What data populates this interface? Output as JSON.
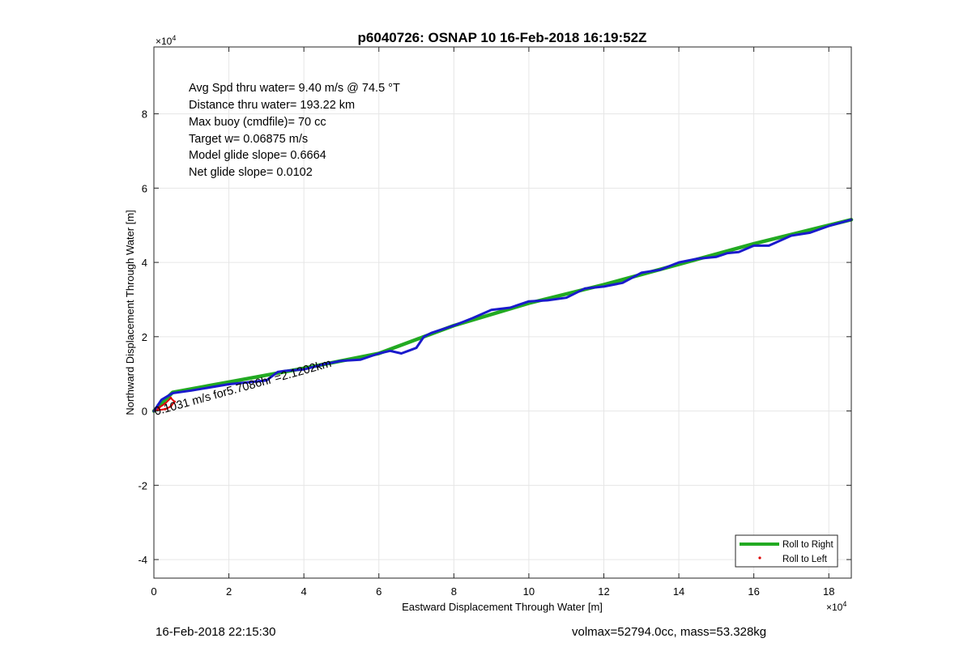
{
  "chart_data": {
    "type": "line",
    "title": "p6040726: OSNAP 10 16-Feb-2018 16:19:52Z",
    "xlabel": "Eastward Displacement Through Water [m]",
    "ylabel": "Northward Displacement Through Water [m]",
    "x_multiplier": "×10",
    "y_multiplier": "×10",
    "multiplier_exponent": "4",
    "xlim": [
      0,
      18.6
    ],
    "ylim": [
      -4.5,
      9.8
    ],
    "x_ticks": [
      0,
      2,
      4,
      6,
      8,
      10,
      12,
      14,
      16,
      18
    ],
    "y_ticks": [
      -4,
      -2,
      0,
      2,
      4,
      6,
      8
    ],
    "grid": true,
    "legend_position": "bottom-right",
    "stats": [
      "Avg Spd thru water=  9.40 m/s @  74.5 °T",
      "Distance thru water= 193.22 km",
      "Max buoy (cmdfile)= 70 cc",
      "Target w= 0.06875 m/s",
      "Model glide slope= 0.6664",
      "Net glide slope= 0.0102"
    ],
    "current_annotation": "0.1031 m/s for5.7086hr =2.1202km",
    "series": [
      {
        "name": "Roll to Right",
        "color": "#22aa22",
        "x": [
          0,
          0.5,
          2,
          4,
          6,
          8,
          10,
          12,
          14,
          16,
          18.6
        ],
        "y": [
          0,
          0.5,
          0.78,
          1.15,
          1.55,
          2.3,
          2.9,
          3.4,
          3.95,
          4.5,
          5.15
        ]
      },
      {
        "name": "Roll to Left",
        "color": "#dd0000",
        "x": [
          0,
          0.15,
          0.3,
          0.45,
          0.55,
          0.45,
          0.3,
          0.1
        ],
        "y": [
          0,
          0.1,
          0.2,
          0.35,
          0.25,
          0.12,
          0.05,
          0.02
        ]
      },
      {
        "name": "",
        "color": "#1a1acc",
        "x": [
          0,
          0.2,
          0.5,
          1,
          2,
          3,
          3.3,
          3.5,
          4,
          4.5,
          5,
          5.5,
          6,
          6.3,
          6.6,
          7,
          7.2,
          7.4,
          8,
          8.5,
          9,
          9.5,
          10,
          10.5,
          11,
          11.5,
          12,
          12.5,
          13,
          13.5,
          14,
          14.5,
          15,
          15.3,
          15.6,
          16,
          16.4,
          17,
          17.5,
          18,
          18.6
        ],
        "y": [
          0,
          0.3,
          0.48,
          0.55,
          0.72,
          0.82,
          1.05,
          1.08,
          1.12,
          1.25,
          1.35,
          1.38,
          1.55,
          1.62,
          1.55,
          1.7,
          2.0,
          2.1,
          2.3,
          2.5,
          2.72,
          2.78,
          2.95,
          2.98,
          3.05,
          3.3,
          3.35,
          3.45,
          3.72,
          3.8,
          4.0,
          4.1,
          4.15,
          4.25,
          4.28,
          4.45,
          4.45,
          4.72,
          4.8,
          4.98,
          5.15
        ]
      }
    ]
  },
  "footer": {
    "timestamp": "16-Feb-2018 22:15:30",
    "mass_info": "volmax=52794.0cc, mass=53.328kg"
  }
}
